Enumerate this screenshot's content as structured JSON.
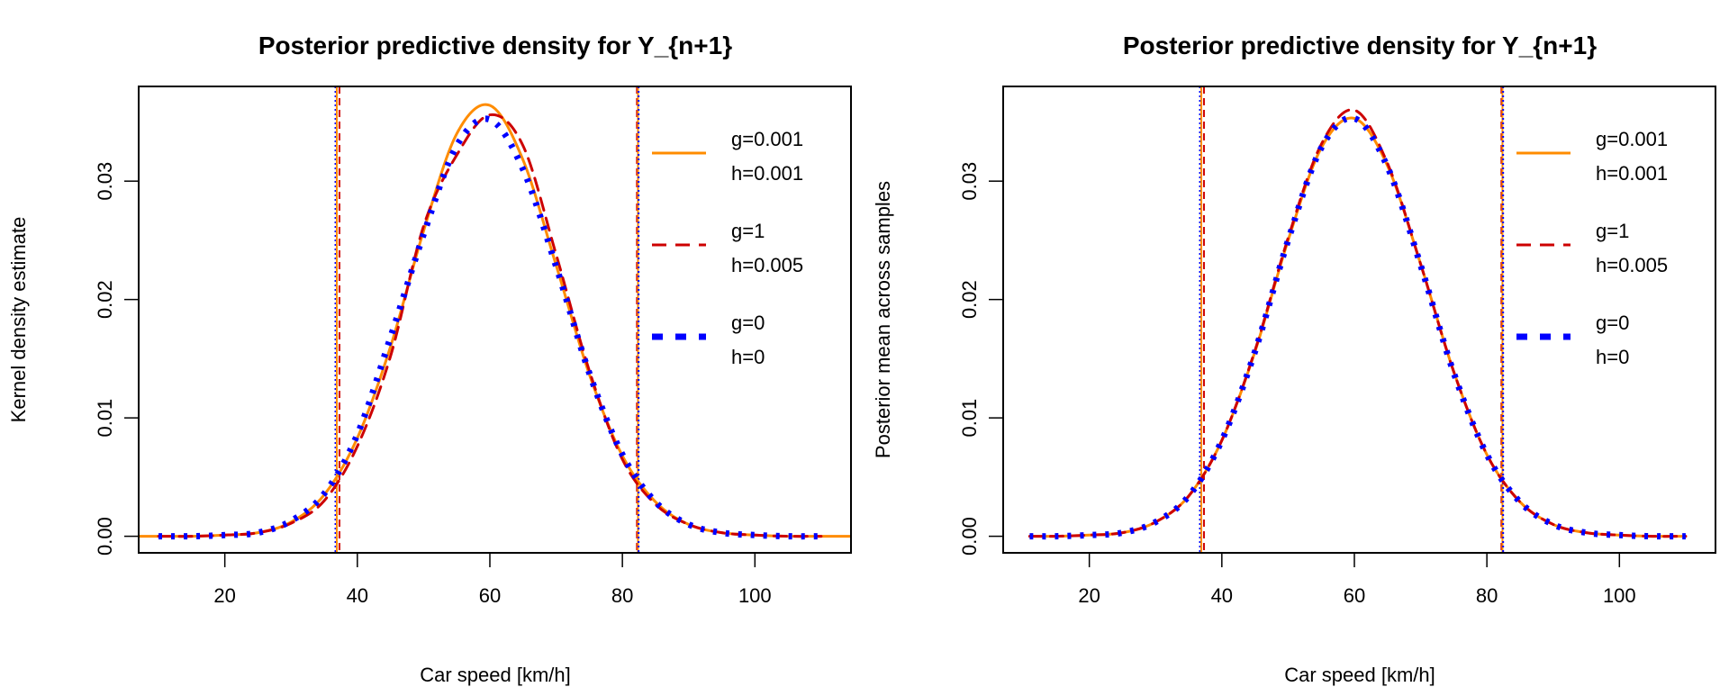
{
  "chart_data": [
    {
      "type": "line",
      "title": "Posterior predictive density for Y_{n+1}",
      "xlabel": "Car speed [km/h]",
      "ylabel": "Kernel density estimate",
      "xlim": [
        7,
        114.5
      ],
      "ylim": [
        -0.0014,
        0.038
      ],
      "xticks": [
        "20",
        "40",
        "60",
        "80",
        "100"
      ],
      "yticks": [
        "0.00",
        "0.01",
        "0.02",
        "0.03"
      ],
      "grid": false,
      "legend_position": "right",
      "x": [
        7,
        10,
        15,
        20,
        25,
        30,
        35,
        40,
        45,
        50,
        55,
        60,
        65,
        70,
        75,
        80,
        85,
        90,
        95,
        100,
        105,
        110,
        114.5
      ],
      "series": [
        {
          "name": "g=0.001\nh=0.001",
          "legend": [
            "g=0.001",
            "h=0.001"
          ],
          "color": "#FF8C00",
          "style": "solid",
          "values": [
            0,
            0,
            0.0,
            0.0001,
            0.0003,
            0.0012,
            0.0035,
            0.0083,
            0.016,
            0.0258,
            0.034,
            0.0364,
            0.0318,
            0.0229,
            0.0137,
            0.0068,
            0.0029,
            0.001,
            0.0003,
            0.0001,
            0,
            0,
            0
          ]
        },
        {
          "name": "g=1\nh=0.005",
          "legend": [
            "g=1",
            "h=0.005"
          ],
          "color": "#CD0000",
          "style": "dashed",
          "values": [
            null,
            0,
            0.0,
            0.0001,
            0.0003,
            0.0011,
            0.003,
            0.0076,
            0.0152,
            0.0262,
            0.0322,
            0.0356,
            0.033,
            0.0238,
            0.014,
            0.0065,
            0.0027,
            0.001,
            0.0003,
            0.0001,
            0,
            0,
            null
          ]
        },
        {
          "name": "g=0\nh=0",
          "legend": [
            "g=0",
            "h=0"
          ],
          "color": "#0000FF",
          "style": "dotted",
          "values": [
            null,
            0,
            0.0,
            0.0001,
            0.0003,
            0.0013,
            0.0036,
            0.0086,
            0.0168,
            0.0255,
            0.033,
            0.0352,
            0.031,
            0.0228,
            0.0138,
            0.0069,
            0.0029,
            0.001,
            0.0003,
            0.0001,
            0,
            0,
            null
          ]
        }
      ],
      "vertical_lines": [
        {
          "x": 36.7,
          "color": "#0000FF",
          "style": "dotted"
        },
        {
          "x": 36.9,
          "color": "#FF8C00",
          "style": "solid"
        },
        {
          "x": 37.3,
          "color": "#CD0000",
          "style": "dashed"
        },
        {
          "x": 82.2,
          "color": "#CD0000",
          "style": "dashed"
        },
        {
          "x": 82.35,
          "color": "#FF8C00",
          "style": "solid"
        },
        {
          "x": 82.45,
          "color": "#0000FF",
          "style": "dotted"
        }
      ]
    },
    {
      "type": "line",
      "title": "Posterior predictive density for Y_{n+1}",
      "xlabel": "Car speed [km/h]",
      "ylabel": "Posterior mean across samples",
      "xlim": [
        7,
        114.5
      ],
      "ylim": [
        -0.0014,
        0.038
      ],
      "xticks": [
        "20",
        "40",
        "60",
        "80",
        "100"
      ],
      "yticks": [
        "0.00",
        "0.01",
        "0.02",
        "0.03"
      ],
      "grid": false,
      "legend_position": "right",
      "x": [
        11,
        15,
        20,
        25,
        30,
        35,
        40,
        45,
        50,
        55,
        60,
        65,
        70,
        75,
        80,
        85,
        90,
        95,
        100,
        105,
        110
      ],
      "series": [
        {
          "name": "g=0.001\nh=0.001",
          "legend": [
            "g=0.001",
            "h=0.001"
          ],
          "color": "#FF8C00",
          "style": "solid",
          "values": [
            0,
            0.0,
            0.0001,
            0.0003,
            0.0012,
            0.0034,
            0.0081,
            0.0156,
            0.025,
            0.0328,
            0.0353,
            0.0313,
            0.023,
            0.0139,
            0.0069,
            0.0029,
            0.001,
            0.0003,
            0.0001,
            0,
            0
          ]
        },
        {
          "name": "g=1\nh=0.005",
          "legend": [
            "g=1",
            "h=0.005"
          ],
          "color": "#CD0000",
          "style": "dashed",
          "values": [
            0,
            0.0,
            0.0001,
            0.0003,
            0.0012,
            0.0034,
            0.0081,
            0.0157,
            0.0252,
            0.0331,
            0.036,
            0.0315,
            0.023,
            0.0139,
            0.0069,
            0.0029,
            0.001,
            0.0003,
            0.0001,
            0,
            0
          ]
        },
        {
          "name": "g=0\nh=0",
          "legend": [
            "g=0",
            "h=0"
          ],
          "color": "#0000FF",
          "style": "dotted",
          "values": [
            0,
            0.0,
            0.0001,
            0.0003,
            0.0012,
            0.0034,
            0.0081,
            0.0156,
            0.025,
            0.0328,
            0.0353,
            0.0312,
            0.0229,
            0.0138,
            0.0069,
            0.0029,
            0.001,
            0.0003,
            0.0001,
            0,
            0
          ]
        }
      ],
      "vertical_lines": [
        {
          "x": 36.7,
          "color": "#0000FF",
          "style": "dotted"
        },
        {
          "x": 36.9,
          "color": "#FF8C00",
          "style": "solid"
        },
        {
          "x": 37.3,
          "color": "#CD0000",
          "style": "dashed"
        },
        {
          "x": 82.2,
          "color": "#CD0000",
          "style": "dashed"
        },
        {
          "x": 82.35,
          "color": "#FF8C00",
          "style": "solid"
        },
        {
          "x": 82.45,
          "color": "#0000FF",
          "style": "dotted"
        }
      ]
    }
  ]
}
